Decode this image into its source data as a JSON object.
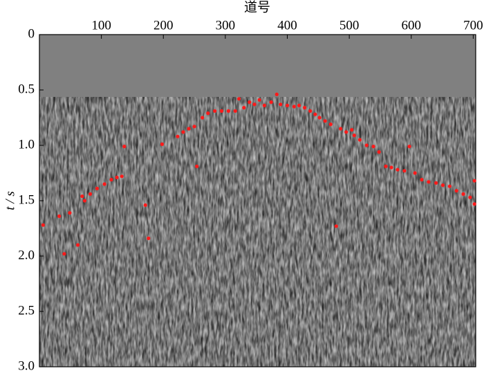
{
  "chart_data": {
    "type": "scatter",
    "xlabel": "道号",
    "ylabel": "t / s",
    "color": "#ff1a1a",
    "y_inverted": true,
    "xlim": [
      0,
      704
    ],
    "ylim": [
      0,
      3
    ],
    "xticks": [
      100,
      200,
      300,
      400,
      500,
      600,
      700
    ],
    "yticks": [
      0,
      0.5,
      {
        "value": 1,
        "label": "1.0"
      },
      1.5,
      {
        "value": 2,
        "label": "2.0"
      },
      2.5,
      {
        "value": 3,
        "label": "3.0"
      }
    ],
    "x": [
      6,
      32,
      40,
      49,
      62,
      69,
      73,
      82,
      93,
      105,
      116,
      125,
      133,
      137,
      171,
      176,
      198,
      223,
      232,
      241,
      250,
      254,
      263,
      272,
      283,
      294,
      305,
      316,
      322,
      330,
      339,
      347,
      355,
      363,
      374,
      383,
      389,
      400,
      411,
      419,
      428,
      437,
      445,
      452,
      461,
      470,
      479,
      486,
      495,
      504,
      508,
      517,
      528,
      539,
      548,
      559,
      568,
      578,
      589,
      597,
      606,
      617,
      628,
      640,
      651,
      662,
      673,
      684,
      695,
      702,
      702
    ],
    "values": [
      1.72,
      1.64,
      1.98,
      1.61,
      1.9,
      1.46,
      1.5,
      1.44,
      1.39,
      1.35,
      1.31,
      1.29,
      1.28,
      1.01,
      1.54,
      1.84,
      0.99,
      0.92,
      0.88,
      0.85,
      0.83,
      1.19,
      0.75,
      0.71,
      0.69,
      0.69,
      0.69,
      0.69,
      0.58,
      0.66,
      0.61,
      0.63,
      0.59,
      0.64,
      0.61,
      0.54,
      0.63,
      0.64,
      0.65,
      0.64,
      0.66,
      0.69,
      0.72,
      0.75,
      0.78,
      0.81,
      1.73,
      0.85,
      0.88,
      0.86,
      0.91,
      0.95,
      1.0,
      1.01,
      1.06,
      1.19,
      1.2,
      1.22,
      1.23,
      1.01,
      1.25,
      1.31,
      1.33,
      1.34,
      1.36,
      1.37,
      1.41,
      1.44,
      1.47,
      1.32,
      1.53
    ]
  }
}
